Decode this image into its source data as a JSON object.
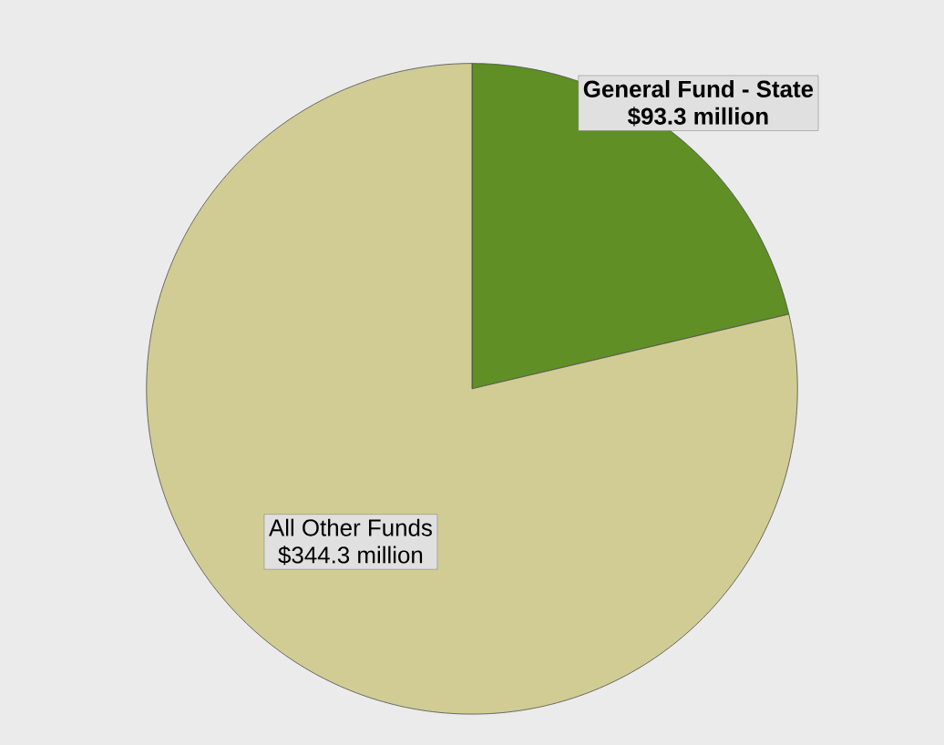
{
  "chart_data": {
    "type": "pie",
    "categories": [
      "General Fund - State",
      "All Other Funds"
    ],
    "values": [
      93.3,
      344.3
    ],
    "colors": [
      "#5f8f25",
      "#d0cc94"
    ],
    "value_labels": [
      "$93.3 million",
      "$344.3 million"
    ]
  }
}
